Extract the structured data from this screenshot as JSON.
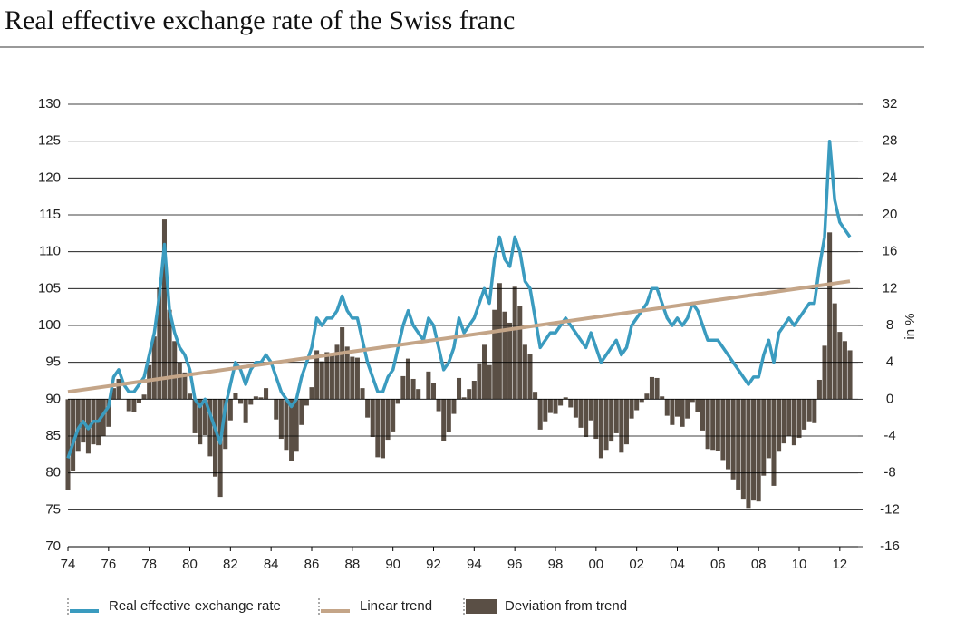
{
  "chart_data": {
    "type": "combo",
    "title": "Real effective exchange rate of the Swiss franc",
    "y2label": "in %",
    "x": [
      1974,
      1974.25,
      1974.5,
      1974.75,
      1975,
      1975.25,
      1975.5,
      1975.75,
      1976,
      1976.25,
      1976.5,
      1976.75,
      1977,
      1977.25,
      1977.5,
      1977.75,
      1978,
      1978.25,
      1978.5,
      1978.75,
      1979,
      1979.25,
      1979.5,
      1979.75,
      1980,
      1980.25,
      1980.5,
      1980.75,
      1981,
      1981.25,
      1981.5,
      1981.75,
      1982,
      1982.25,
      1982.5,
      1982.75,
      1983,
      1983.25,
      1983.5,
      1983.75,
      1984,
      1984.25,
      1984.5,
      1984.75,
      1985,
      1985.25,
      1985.5,
      1985.75,
      1986,
      1986.25,
      1986.5,
      1986.75,
      1987,
      1987.25,
      1987.5,
      1987.75,
      1988,
      1988.25,
      1988.5,
      1988.75,
      1989,
      1989.25,
      1989.5,
      1989.75,
      1990,
      1990.25,
      1990.5,
      1990.75,
      1991,
      1991.25,
      1991.5,
      1991.75,
      1992,
      1992.25,
      1992.5,
      1992.75,
      1993,
      1993.25,
      1993.5,
      1993.75,
      1994,
      1994.25,
      1994.5,
      1994.75,
      1995,
      1995.25,
      1995.5,
      1995.75,
      1996,
      1996.25,
      1996.5,
      1996.75,
      1997,
      1997.25,
      1997.5,
      1997.75,
      1998,
      1998.25,
      1998.5,
      1998.75,
      1999,
      1999.25,
      1999.5,
      1999.75,
      2000,
      2000.25,
      2000.5,
      2000.75,
      2001,
      2001.25,
      2001.5,
      2001.75,
      2002,
      2002.25,
      2002.5,
      2002.75,
      2003,
      2003.25,
      2003.5,
      2003.75,
      2004,
      2004.25,
      2004.5,
      2004.75,
      2005,
      2005.25,
      2005.5,
      2005.75,
      2006,
      2006.25,
      2006.5,
      2006.75,
      2007,
      2007.25,
      2007.5,
      2007.75,
      2008,
      2008.25,
      2008.5,
      2008.75,
      2009,
      2009.25,
      2009.5,
      2009.75,
      2010,
      2010.25,
      2010.5,
      2010.75,
      2011,
      2011.25,
      2011.5,
      2011.75,
      2012,
      2012.25,
      2012.5
    ],
    "series": [
      {
        "name": "Real effective exchange rate",
        "kind": "line",
        "color": "#3a9bbf",
        "values": [
          82,
          84,
          86,
          87,
          86,
          87,
          87,
          88,
          89,
          93,
          94,
          92,
          91,
          91,
          92,
          93,
          96,
          99,
          104,
          111,
          102,
          99,
          97,
          96,
          94,
          90,
          89,
          90,
          88,
          86,
          84,
          89,
          92,
          95,
          94,
          92,
          94,
          95,
          95,
          96,
          95,
          93,
          91,
          90,
          89,
          90,
          93,
          95,
          97,
          101,
          100,
          101,
          101,
          102,
          104,
          102,
          101,
          101,
          98,
          95,
          93,
          91,
          91,
          93,
          94,
          97,
          100,
          102,
          100,
          99,
          98,
          101,
          100,
          97,
          94,
          95,
          97,
          101,
          99,
          100,
          101,
          103,
          105,
          103,
          109,
          112,
          109,
          108,
          112,
          110,
          106,
          105,
          101,
          97,
          98,
          99,
          99,
          100,
          101,
          100,
          99,
          98,
          97,
          99,
          97,
          95,
          96,
          97,
          98,
          96,
          97,
          100,
          101,
          102,
          103,
          105,
          105,
          103,
          101,
          100,
          101,
          100,
          101,
          103,
          102,
          100,
          98,
          98,
          98,
          97,
          96,
          95,
          94,
          93,
          92,
          93,
          93,
          96,
          98,
          95,
          99,
          100,
          101,
          100,
          101,
          102,
          103,
          103,
          108,
          112,
          125,
          117,
          114,
          113,
          112
        ]
      },
      {
        "name": "Linear trend",
        "kind": "line",
        "color": "#c4a588",
        "x": [
          1974,
          2012.5
        ],
        "values": [
          91,
          106
        ]
      },
      {
        "name": "Deviation from trend",
        "kind": "bar",
        "axis": "y2",
        "color": "#5a4f45",
        "values": [
          -9.9,
          -7.8,
          -5.7,
          -4.7,
          -5.9,
          -4.9,
          -5.0,
          -4.0,
          -3.0,
          1.2,
          2.2,
          0.0,
          -1.3,
          -1.4,
          -0.4,
          0.5,
          3.7,
          6.8,
          12.1,
          19.5,
          9.7,
          6.3,
          4.0,
          2.9,
          0.6,
          -3.7,
          -4.9,
          -3.9,
          -6.2,
          -8.4,
          -10.6,
          -5.4,
          -2.3,
          0.7,
          -0.5,
          -2.6,
          -0.6,
          0.3,
          0.2,
          1.2,
          0.0,
          -2.2,
          -4.3,
          -5.5,
          -6.7,
          -5.7,
          -2.8,
          -0.7,
          1.3,
          5.3,
          4.1,
          5.1,
          5.0,
          5.9,
          7.8,
          5.7,
          4.6,
          4.5,
          1.2,
          -2.0,
          -4.1,
          -6.3,
          -6.4,
          -4.4,
          -3.5,
          -0.5,
          2.5,
          4.4,
          2.2,
          1.1,
          0.0,
          3.0,
          1.8,
          -1.3,
          -4.5,
          -3.6,
          -1.6,
          2.3,
          0.2,
          1.1,
          2.0,
          3.9,
          5.9,
          3.7,
          9.7,
          12.6,
          9.5,
          8.3,
          12.2,
          10.1,
          5.9,
          4.9,
          0.8,
          -3.3,
          -2.4,
          -1.5,
          -1.6,
          -0.7,
          0.2,
          -0.9,
          -2.0,
          -3.1,
          -4.1,
          -2.3,
          -4.3,
          -6.4,
          -5.5,
          -4.6,
          -3.7,
          -5.8,
          -4.9,
          -2.1,
          -1.2,
          -0.3,
          0.6,
          2.4,
          2.3,
          0.3,
          -1.8,
          -2.8,
          -1.9,
          -3.0,
          -2.1,
          -0.3,
          -1.4,
          -3.4,
          -5.4,
          -5.5,
          -5.6,
          -6.6,
          -7.6,
          -8.7,
          -9.8,
          -10.8,
          -11.8,
          -11.0,
          -11.1,
          -8.3,
          -6.4,
          -9.4,
          -5.7,
          -4.8,
          -4.0,
          -5.0,
          -4.2,
          -3.3,
          -2.4,
          -2.6,
          2.1,
          5.8,
          18.1,
          10.4,
          7.3,
          6.3,
          5.3
        ]
      }
    ],
    "xlim": [
      1974,
      2012.9
    ],
    "xticks": [
      {
        "value": 1974,
        "label": "74"
      },
      {
        "value": 1976,
        "label": "76"
      },
      {
        "value": 1978,
        "label": "78"
      },
      {
        "value": 1980,
        "label": "80"
      },
      {
        "value": 1982,
        "label": "82"
      },
      {
        "value": 1984,
        "label": "84"
      },
      {
        "value": 1986,
        "label": "86"
      },
      {
        "value": 1988,
        "label": "88"
      },
      {
        "value": 1990,
        "label": "90"
      },
      {
        "value": 1992,
        "label": "92"
      },
      {
        "value": 1994,
        "label": "94"
      },
      {
        "value": 1996,
        "label": "96"
      },
      {
        "value": 1998,
        "label": "98"
      },
      {
        "value": 2000,
        "label": "00"
      },
      {
        "value": 2002,
        "label": "02"
      },
      {
        "value": 2004,
        "label": "04"
      },
      {
        "value": 2006,
        "label": "06"
      },
      {
        "value": 2008,
        "label": "08"
      },
      {
        "value": 2010,
        "label": "10"
      },
      {
        "value": 2012,
        "label": "12"
      }
    ],
    "ylim": [
      70,
      130
    ],
    "yticks": [
      70,
      75,
      80,
      85,
      90,
      95,
      100,
      105,
      110,
      115,
      120,
      125,
      130
    ],
    "y2lim": [
      -16,
      32
    ],
    "y2ticks": [
      -16,
      -12,
      -8,
      -4,
      0,
      4,
      8,
      12,
      16,
      20,
      24,
      28,
      32
    ],
    "grid": true
  }
}
